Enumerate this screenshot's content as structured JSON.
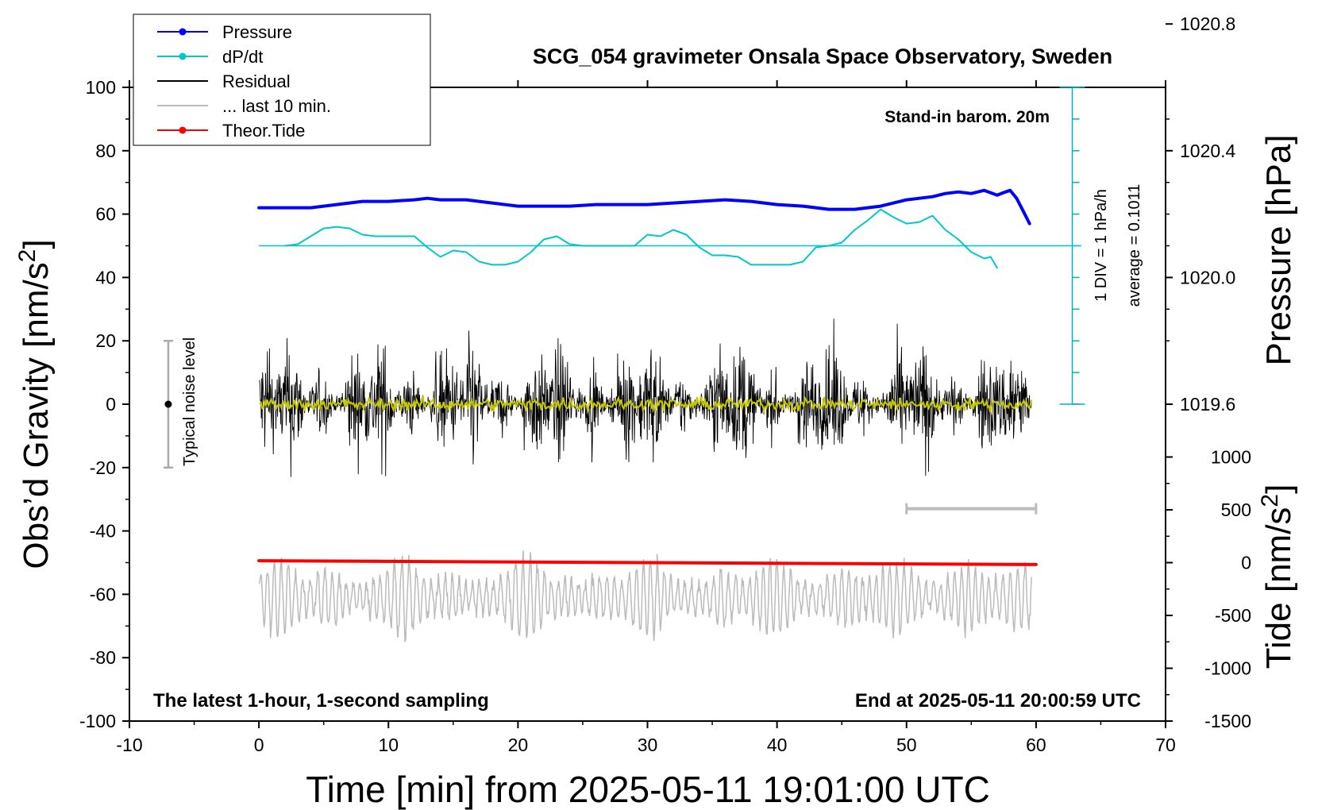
{
  "chart_data": {
    "type": "line",
    "title": "SCG_054 gravimeter Onsala Space Observatory, Sweden",
    "xlabel": "Time [min] from 2025-05-11 19:01:00 UTC",
    "ylabel_left": "Obs’d Gravity [nm/s",
    "ylabel_left_sup": "2",
    "ylabel_left_end": "]",
    "ylabel_right_pressure": "Pressure [hPa]",
    "ylabel_right_tide": "Tide [nm/s",
    "ylabel_right_tide_sup": "2",
    "ylabel_right_tide_end": "]",
    "xlim": [
      -10,
      70
    ],
    "ylim_left": [
      -100,
      100
    ],
    "x_ticks": [
      "-10",
      "0",
      "10",
      "20",
      "30",
      "40",
      "50",
      "60",
      "70"
    ],
    "y_ticks_left": [
      "100",
      "80",
      "60",
      "40",
      "20",
      "0",
      "-20",
      "-40",
      "-60",
      "-80",
      "-100"
    ],
    "pressure_ticks": [
      "1020.8",
      "1020.4",
      "1020.0",
      "1019.6"
    ],
    "tide_ticks": [
      "1000",
      "500",
      "0",
      "-500",
      "-1000",
      "-1500"
    ],
    "legend": {
      "placement": "top-left",
      "entries": [
        {
          "label": "Pressure",
          "color": "#0000ff",
          "marker": true
        },
        {
          "label": "dP/dt",
          "color": "#00c8c8",
          "marker": true
        },
        {
          "label": "Residual",
          "color": "#000000",
          "marker": false
        },
        {
          "label": "... last 10 min.",
          "color": "#bbbbbb",
          "marker": false
        },
        {
          "label": "Theor.Tide",
          "color": "#ff0000",
          "marker": true
        }
      ]
    },
    "annotations": {
      "barometer": "Stand-in barom. 20m",
      "noise_label": "Typical noise level",
      "div_label": "1 DIV = 1 hPa/h",
      "average_label": "average = 0.1011",
      "bottom_left": "The latest 1-hour, 1-second sampling",
      "bottom_right": "End at 2025-05-11 20:00:59 UTC"
    },
    "noise_level": {
      "x": -7,
      "y": 0,
      "range": [
        -20,
        20
      ]
    },
    "last10_bar": {
      "x": [
        50,
        60
      ],
      "y_left": -33
    },
    "series": [
      {
        "name": "Pressure",
        "color": "#0000ff",
        "x": [
          0,
          2,
          4,
          6,
          8,
          10,
          12,
          13,
          14,
          16,
          18,
          20,
          22,
          24,
          26,
          28,
          30,
          32,
          34,
          36,
          38,
          40,
          42,
          44,
          46,
          48,
          50,
          52,
          53,
          54,
          55,
          56,
          57,
          57.5,
          58,
          58.5,
          59,
          59.5
        ],
        "values": [
          62,
          62,
          62,
          63,
          64,
          64,
          64.5,
          65,
          64.5,
          64.5,
          63.5,
          62.5,
          62.5,
          62.5,
          63,
          63,
          63,
          63.5,
          64,
          64.5,
          64,
          63,
          62.5,
          61.5,
          61.5,
          62.5,
          64.5,
          65.5,
          66.5,
          67,
          66.5,
          67.5,
          66,
          66.8,
          67.5,
          65,
          61,
          57
        ]
      },
      {
        "name": "dP/dt",
        "color": "#00c8c8",
        "baseline": 50,
        "x": [
          2,
          3,
          4,
          5,
          6,
          7,
          8,
          9,
          10,
          11,
          12,
          13,
          14,
          15,
          16,
          17,
          18,
          19,
          20,
          21,
          22,
          23,
          24,
          25,
          26,
          27,
          28,
          29,
          30,
          31,
          32,
          33,
          34,
          35,
          36,
          37,
          38,
          39,
          40,
          41,
          42,
          43,
          44,
          45,
          46,
          47,
          48,
          49,
          50,
          51,
          52,
          53,
          54,
          55,
          56,
          56.5,
          57
        ],
        "values": [
          50,
          50.5,
          53,
          55.5,
          56,
          55.5,
          53.5,
          53,
          53,
          53,
          53,
          49.5,
          46.5,
          48.5,
          48,
          45,
          44,
          44,
          45,
          48,
          52,
          53,
          50.5,
          50,
          50,
          50,
          50,
          50,
          53.5,
          53,
          55,
          53.5,
          49.5,
          47,
          47,
          46.5,
          44,
          44,
          44,
          44,
          45,
          49.5,
          50,
          51,
          55,
          58,
          61.5,
          59,
          57,
          57.5,
          59.5,
          55,
          52,
          48,
          46,
          46.5,
          43
        ]
      },
      {
        "name": "Theor.Tide",
        "color": "#ff0000",
        "x": [
          0,
          60
        ],
        "values": [
          -49.4,
          -50.6
        ]
      }
    ]
  }
}
